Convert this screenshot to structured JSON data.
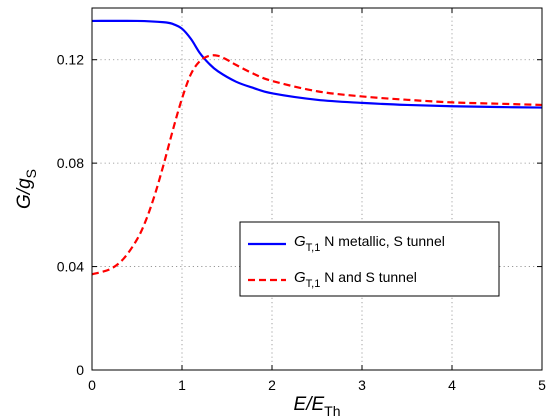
{
  "chart_data": {
    "type": "line",
    "xlim": [
      0,
      5
    ],
    "ylim": [
      0,
      0.14
    ],
    "xticks": [
      "0",
      "1",
      "2",
      "3",
      "4",
      "5"
    ],
    "yticks": [
      "0",
      "0.04",
      "0.08",
      "0.12"
    ],
    "xtick_values": [
      0,
      1,
      2,
      3,
      4,
      5
    ],
    "ytick_values": [
      0,
      0.04,
      0.08,
      0.12
    ],
    "xlabel": {
      "main": "E/E",
      "sub": "Th"
    },
    "ylabel": {
      "main": "G/g",
      "sub": "S"
    },
    "grid": true,
    "legend_position": "right",
    "series": [
      {
        "name": "G_T,1 N metallic, S tunnel",
        "legend": {
          "symbol": "G",
          "sub": "T,1",
          "text": " N metallic, S tunnel"
        },
        "color": "#0000ff",
        "style": "solid",
        "x": [
          0,
          0.5,
          0.8,
          0.9,
          1.0,
          1.1,
          1.2,
          1.3,
          1.4,
          1.6,
          1.8,
          2.0,
          2.5,
          3.0,
          3.5,
          4.0,
          4.5,
          5.0
        ],
        "y": [
          0.135,
          0.135,
          0.1345,
          0.1338,
          0.132,
          0.128,
          0.1225,
          0.1185,
          0.1155,
          0.1115,
          0.109,
          0.107,
          0.1045,
          0.1033,
          0.1025,
          0.102,
          0.1017,
          0.1015
        ]
      },
      {
        "name": "G_T,1 N and S tunnel",
        "legend": {
          "symbol": "G",
          "sub": "T,1",
          "text": " N and S tunnel"
        },
        "color": "#ff0000",
        "style": "dashed",
        "x": [
          0,
          0.2,
          0.35,
          0.5,
          0.6,
          0.7,
          0.8,
          0.9,
          1.0,
          1.1,
          1.2,
          1.3,
          1.4,
          1.5,
          1.6,
          1.8,
          2.0,
          2.5,
          3.0,
          3.5,
          4.0,
          4.5,
          5.0
        ],
        "y": [
          0.037,
          0.039,
          0.043,
          0.0505,
          0.058,
          0.068,
          0.08,
          0.093,
          0.105,
          0.1145,
          0.1195,
          0.1215,
          0.1215,
          0.12,
          0.118,
          0.1145,
          0.1118,
          0.1078,
          0.1058,
          0.1045,
          0.1035,
          0.103,
          0.1025
        ]
      }
    ]
  }
}
